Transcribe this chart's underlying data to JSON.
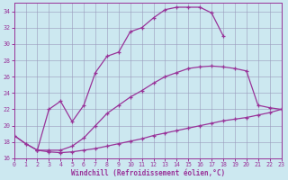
{
  "xlabel": "Windchill (Refroidissement éolien,°C)",
  "xlim": [
    0,
    23
  ],
  "ylim": [
    16,
    35
  ],
  "yticks": [
    16,
    18,
    20,
    22,
    24,
    26,
    28,
    30,
    32,
    34
  ],
  "xticks": [
    0,
    1,
    2,
    3,
    4,
    5,
    6,
    7,
    8,
    9,
    10,
    11,
    12,
    13,
    14,
    15,
    16,
    17,
    18,
    19,
    20,
    21,
    22,
    23
  ],
  "line_color": "#993399",
  "bg_color": "#cce8f0",
  "grid_color": "#9999bb",
  "curve1_x": [
    0,
    1,
    2,
    3,
    4,
    5,
    6,
    7,
    8,
    9,
    10,
    11,
    12,
    13,
    14,
    15,
    16,
    17,
    18
  ],
  "curve1_y": [
    18.8,
    17.8,
    17.0,
    22.0,
    23.0,
    20.5,
    22.5,
    26.5,
    28.5,
    29.0,
    31.5,
    32.0,
    33.2,
    34.2,
    34.5,
    34.5,
    34.5,
    33.8,
    31.0
  ],
  "curve2_x": [
    2,
    3,
    4,
    5,
    6,
    7,
    8,
    9,
    10,
    11,
    12,
    13,
    14,
    15,
    16,
    17,
    18,
    19,
    20,
    21,
    22,
    23
  ],
  "curve2_y": [
    17.0,
    17.0,
    17.0,
    17.5,
    18.5,
    20.0,
    21.5,
    22.5,
    23.5,
    24.3,
    25.2,
    26.0,
    26.5,
    27.0,
    27.2,
    27.3,
    27.2,
    27.0,
    26.7,
    22.5,
    22.2,
    22.0
  ],
  "curve3_x": [
    0,
    1,
    2,
    3,
    4,
    5,
    6,
    7,
    8,
    9,
    10,
    11,
    12,
    13,
    14,
    15,
    16,
    17,
    18,
    19,
    20,
    21,
    22,
    23
  ],
  "curve3_y": [
    18.8,
    17.8,
    17.0,
    16.8,
    16.7,
    16.8,
    17.0,
    17.2,
    17.5,
    17.8,
    18.1,
    18.4,
    18.8,
    19.1,
    19.4,
    19.7,
    20.0,
    20.3,
    20.6,
    20.8,
    21.0,
    21.3,
    21.6,
    22.0
  ]
}
